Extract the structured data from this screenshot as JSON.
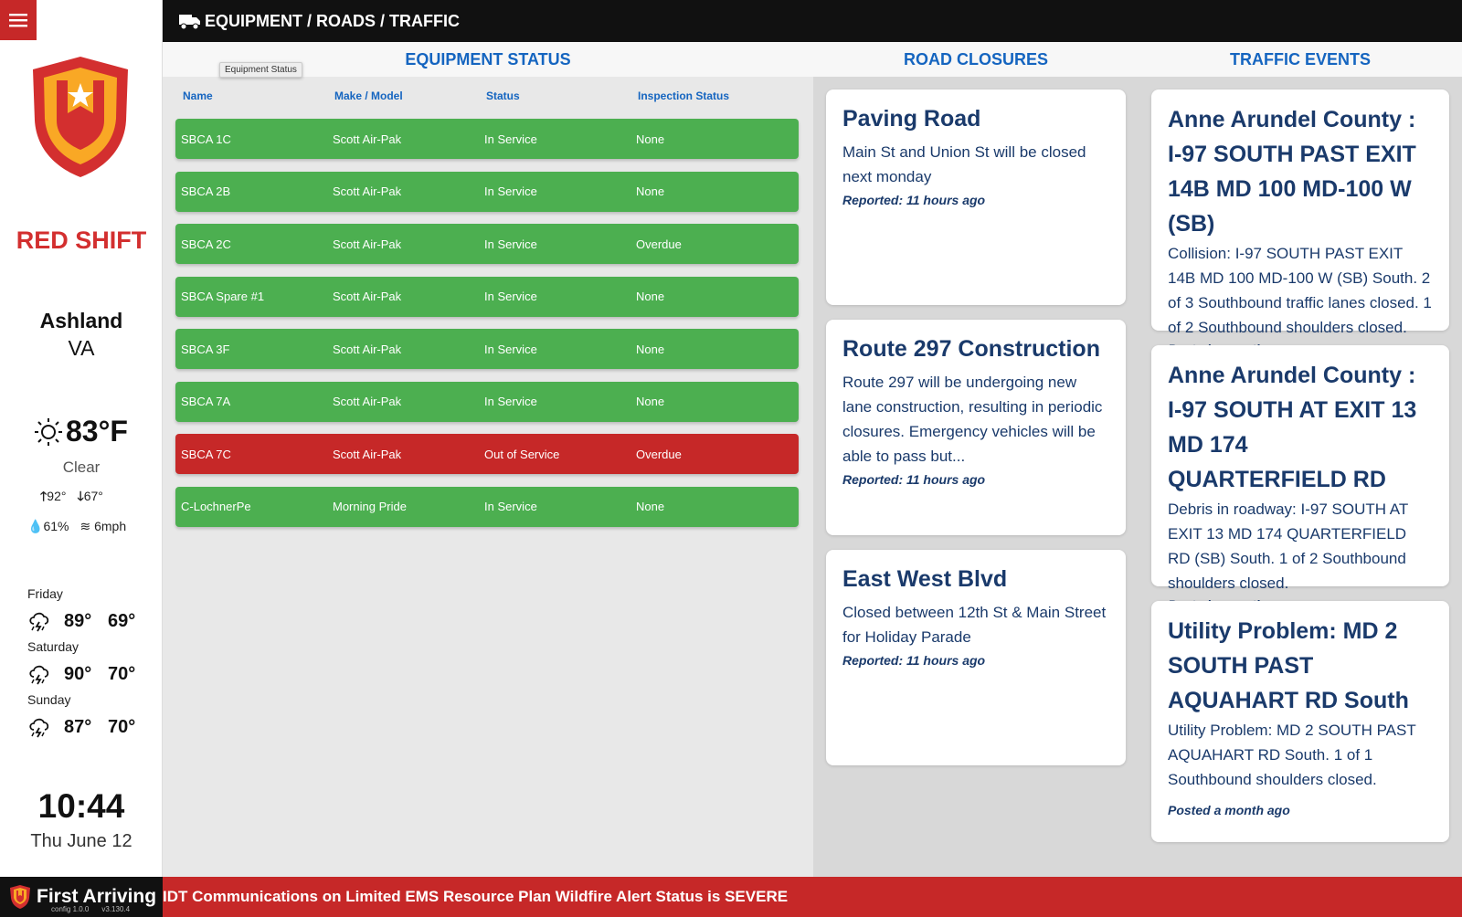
{
  "header": {
    "title": "EQUIPMENT / ROADS / TRAFFIC",
    "icon": "truck-icon"
  },
  "sidebar": {
    "shift": "RED SHIFT",
    "city": "Ashland",
    "state": "VA",
    "weather": {
      "temp": "83°F",
      "condition": "Clear",
      "high": "92°",
      "low": "67°",
      "humidity": "61%",
      "wind": "6mph"
    },
    "forecast": [
      {
        "day": "Friday",
        "high": "89°",
        "low": "69°"
      },
      {
        "day": "Saturday",
        "high": "90°",
        "low": "70°"
      },
      {
        "day": "Sunday",
        "high": "87°",
        "low": "70°"
      }
    ],
    "time": "10:44",
    "date": "Thu June 12"
  },
  "equipment": {
    "heading": "EQUIPMENT STATUS",
    "tooltip": "Equipment Status",
    "columns": [
      "Name",
      "Make / Model",
      "Status",
      "Inspection Status"
    ],
    "rows": [
      {
        "name": "SBCA 1C",
        "model": "Scott Air-Pak",
        "status": "In Service",
        "inspection": "None",
        "color": "#4caf50"
      },
      {
        "name": "SBCA 2B",
        "model": "Scott Air-Pak",
        "status": "In Service",
        "inspection": "None",
        "color": "#4caf50"
      },
      {
        "name": "SBCA 2C",
        "model": "Scott Air-Pak",
        "status": "In Service",
        "inspection": "Overdue",
        "color": "#4caf50"
      },
      {
        "name": "SBCA Spare #1",
        "model": "Scott Air-Pak",
        "status": "In Service",
        "inspection": "None",
        "color": "#4caf50"
      },
      {
        "name": "SBCA 3F",
        "model": "Scott Air-Pak",
        "status": "In Service",
        "inspection": "None",
        "color": "#4caf50"
      },
      {
        "name": "SBCA 7A",
        "model": "Scott Air-Pak",
        "status": "In Service",
        "inspection": "None",
        "color": "#4caf50"
      },
      {
        "name": "SBCA 7C",
        "model": "Scott Air-Pak",
        "status": "Out of Service",
        "inspection": "Overdue",
        "color": "#c62828"
      },
      {
        "name": "C-LochnerPe",
        "model": "Morning Pride",
        "status": "In Service",
        "inspection": "None",
        "color": "#4caf50"
      }
    ]
  },
  "road_closures": {
    "heading": "ROAD CLOSURES",
    "items": [
      {
        "title": "Paving Road",
        "body": "Main St and Union St will be closed next monday",
        "meta": "Reported: 11 hours ago"
      },
      {
        "title": "Route 297 Construction",
        "body": "Route 297 will be undergoing new lane construction, resulting in periodic closures. Emergency vehicles will be able to pass but...",
        "meta": "Reported: 11 hours ago"
      },
      {
        "title": "East West Blvd",
        "body": "Closed between 12th St & Main Street for Holiday Parade",
        "meta": "Reported: 11 hours ago"
      }
    ]
  },
  "traffic_events": {
    "heading": "TRAFFIC EVENTS",
    "items": [
      {
        "title": "Anne Arundel County : I-97 SOUTH PAST EXIT 14B MD 100 MD-100 W (SB)",
        "body": "Collision: I-97 SOUTH PAST EXIT 14B MD 100 MD-100 W (SB) South. 2 of 3 Southbound traffic lanes closed. 1 of 2 Southbound shoulders closed.",
        "meta": "Posted a month ago"
      },
      {
        "title": "Anne Arundel County : I-97 SOUTH AT EXIT 13 MD 174 QUARTERFIELD RD",
        "body": "Debris in roadway: I-97 SOUTH AT EXIT 13 MD 174 QUARTERFIELD RD (SB) South. 1 of 2 Southbound shoulders closed.",
        "meta": "Posted a month ago"
      },
      {
        "title": "Utility Problem: MD 2 SOUTH PAST AQUAHART RD South",
        "body": "Utility Problem: MD 2 SOUTH PAST AQUAHART RD South. 1 of 1 Southbound shoulders closed.",
        "meta": "Posted a month ago"
      }
    ]
  },
  "footer": {
    "brand": "First Arriving",
    "config": "config 1.0.0",
    "version": "v3.130.4",
    "ticker": "IDT Communications on Limited EMS Resource Plan Wildfire Alert Status is SEVERE"
  },
  "colors": {
    "brand_red": "#c62828",
    "in_service": "#4caf50",
    "out_of_service": "#c62828",
    "heading_blue": "#1565c0"
  }
}
